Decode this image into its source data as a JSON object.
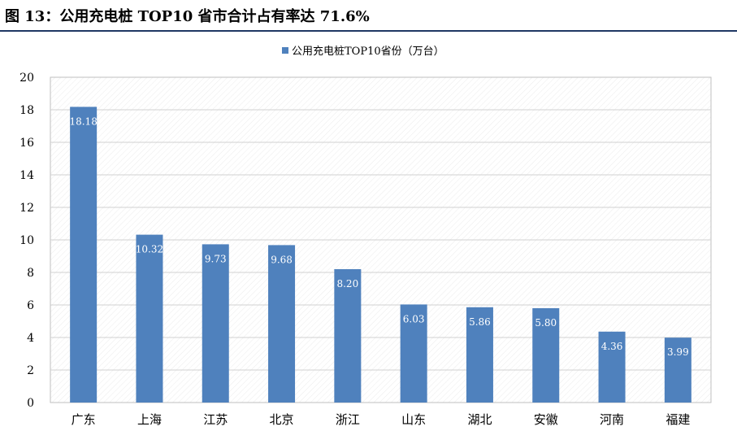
{
  "figure_title": "图 13：公用充电桩 TOP10 省市合计占有率达 71.6%",
  "chart_data": {
    "type": "bar",
    "categories": [
      "广东",
      "上海",
      "江苏",
      "北京",
      "浙江",
      "山东",
      "湖北",
      "安徽",
      "河南",
      "福建"
    ],
    "series": [
      {
        "name": "公用充电桩TOP10省份（万台）",
        "values": [
          18.18,
          10.32,
          9.73,
          9.68,
          8.2,
          6.03,
          5.86,
          5.8,
          4.36,
          3.99
        ],
        "labels": [
          "18.18",
          "10.32",
          "9.73",
          "9.68",
          "8.20",
          "6.03",
          "5.86",
          "5.80",
          "4.36",
          "3.99"
        ],
        "color": "#4f81bd"
      }
    ],
    "ylim": [
      0,
      20
    ],
    "yticks": [
      0,
      2,
      4,
      6,
      8,
      10,
      12,
      14,
      16,
      18,
      20
    ],
    "grid": true,
    "legend": "top-center"
  }
}
